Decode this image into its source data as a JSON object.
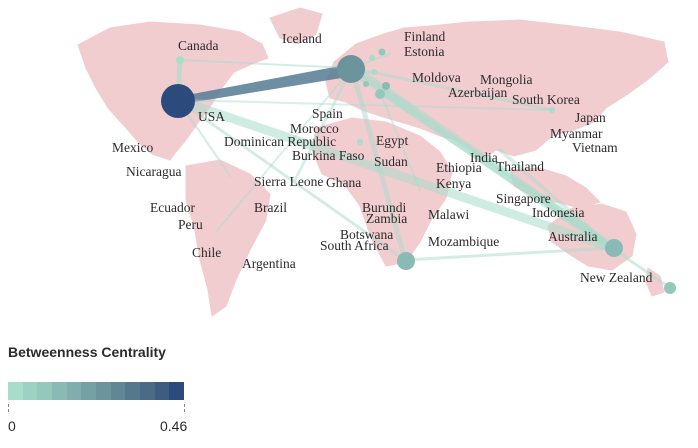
{
  "map": {
    "labels": [
      "Canada",
      "Iceland",
      "Finland",
      "Estonia",
      "Moldova",
      "Mongolia",
      "Azerbaijan",
      "South Korea",
      "Japan",
      "Myanmar",
      "Vietnam",
      "USA",
      "Spain",
      "Morocco",
      "Dominican Republic",
      "Burkina Faso",
      "Egypt",
      "Sudan",
      "Ethiopia",
      "India",
      "Thailand",
      "Mexico",
      "Nicaragua",
      "Sierra Leone",
      "Ghana",
      "Kenya",
      "Singapore",
      "Indonesia",
      "Ecuador",
      "Peru",
      "Brazil",
      "Burundi",
      "Zambia",
      "Malawi",
      "Botswana",
      "South Africa",
      "Mozambique",
      "Australia",
      "Chile",
      "Argentina",
      "New Zealand"
    ],
    "node_color_scale": {
      "min_color": "#a8dccb",
      "max_color": "#2c4a7c",
      "min_value": 0,
      "max_value": 0.46
    },
    "nodes": [
      {
        "id": "USA",
        "centrality": 0.46
      },
      {
        "id": "Europe-hub",
        "centrality": 0.35
      },
      {
        "id": "South Africa",
        "centrality": 0.14
      },
      {
        "id": "Australia",
        "centrality": 0.13
      },
      {
        "id": "New Zealand",
        "centrality": 0.06
      },
      {
        "id": "Canada",
        "centrality": 0.02
      },
      {
        "id": "Finland",
        "centrality": 0.03
      },
      {
        "id": "Estonia",
        "centrality": 0.03
      },
      {
        "id": "Moldova",
        "centrality": 0.04
      },
      {
        "id": "South Korea",
        "centrality": 0.02
      },
      {
        "id": "Egypt",
        "centrality": 0.02
      },
      {
        "id": "Singapore",
        "centrality": 0.03
      }
    ]
  },
  "legend": {
    "title": "Betweenness Centrality",
    "min_label": "0",
    "max_label": "0.46",
    "gradient_colors": [
      "#a8dccb",
      "#9dd2c3",
      "#93c8bb",
      "#89bbb4",
      "#7faeac",
      "#75a1a4",
      "#6b949d",
      "#618695",
      "#56788c",
      "#4a6a86",
      "#3e5c80",
      "#2c4a7c"
    ]
  }
}
